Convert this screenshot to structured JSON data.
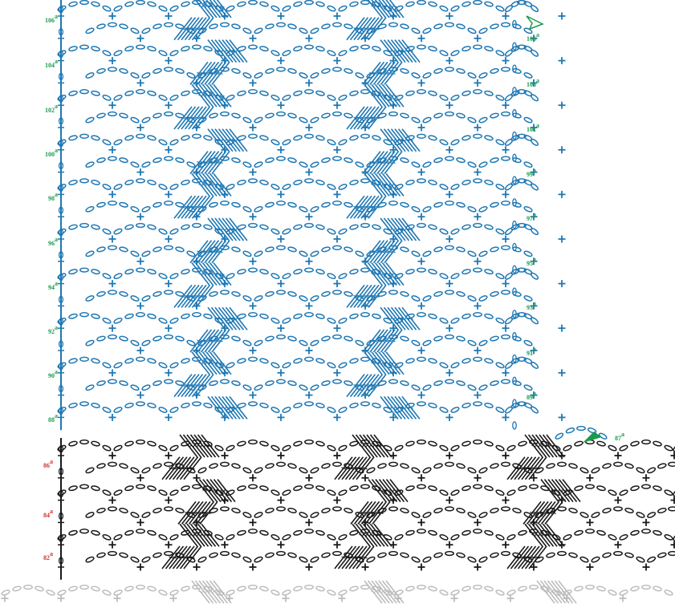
{
  "colors": {
    "new_rows": "#1f78b4",
    "previous_rows": "#1a1a1a",
    "faded_rows": "#bdbdbd",
    "label_new": "#1a9b4b",
    "label_previous": "#d32f2f",
    "arrow": "#1a9b4b"
  },
  "row_labels": {
    "left_green": [
      {
        "num": "106",
        "sup": "a"
      },
      {
        "num": "104",
        "sup": "a"
      },
      {
        "num": "102",
        "sup": "a"
      },
      {
        "num": "100",
        "sup": "a"
      },
      {
        "num": "98",
        "sup": "a"
      },
      {
        "num": "96",
        "sup": "a"
      },
      {
        "num": "94",
        "sup": "a"
      },
      {
        "num": "92",
        "sup": "a"
      },
      {
        "num": "90",
        "sup": "a"
      },
      {
        "num": "88",
        "sup": "a"
      }
    ],
    "right_green": [
      {
        "num": "105",
        "sup": "a"
      },
      {
        "num": "103",
        "sup": "a"
      },
      {
        "num": "101",
        "sup": "a"
      },
      {
        "num": "99",
        "sup": "a"
      },
      {
        "num": "97",
        "sup": "a"
      },
      {
        "num": "95",
        "sup": "a"
      },
      {
        "num": "93",
        "sup": "a"
      },
      {
        "num": "91",
        "sup": "a"
      },
      {
        "num": "89",
        "sup": "a"
      },
      {
        "num": "87",
        "sup": "a"
      }
    ],
    "left_red": [
      {
        "num": "86",
        "sup": "a"
      },
      {
        "num": "84",
        "sup": "a"
      },
      {
        "num": "82",
        "sup": "a"
      }
    ]
  },
  "icons": {
    "start_arrow": "arrow-start-icon",
    "end_arrow": "arrow-end-icon"
  }
}
